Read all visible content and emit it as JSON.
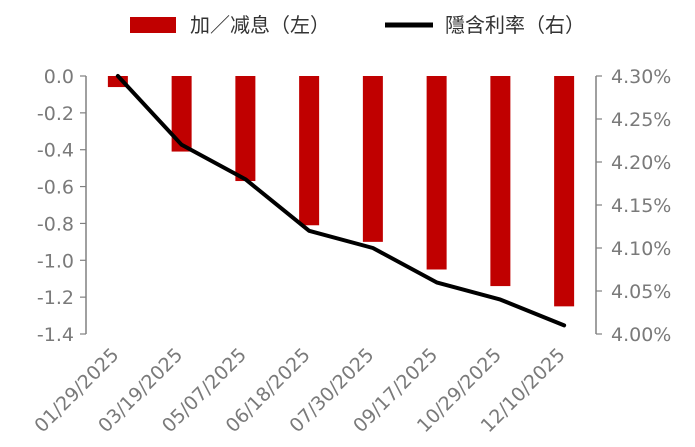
{
  "chart_data": {
    "type": "bar+line",
    "categories": [
      "01/29/2025",
      "03/19/2025",
      "05/07/2025",
      "06/18/2025",
      "07/30/2025",
      "09/17/2025",
      "10/29/2025",
      "12/10/2025"
    ],
    "series": [
      {
        "name": "加／减息（左）",
        "type": "bar",
        "axis": "left",
        "color": "#C00000",
        "values": [
          -0.06,
          -0.41,
          -0.57,
          -0.81,
          -0.9,
          -1.05,
          -1.14,
          -1.25
        ]
      },
      {
        "name": "隱含利率（右）",
        "type": "line",
        "axis": "right",
        "color": "#000000",
        "values": [
          4.3,
          4.22,
          4.18,
          4.12,
          4.1,
          4.06,
          4.04,
          4.01
        ]
      }
    ],
    "y_left": {
      "ylim": [
        -1.4,
        0.0
      ],
      "ticks": [
        "0.0",
        "-0.2",
        "-0.4",
        "-0.6",
        "-0.8",
        "-1.0",
        "-1.2",
        "-1.4"
      ]
    },
    "y_right": {
      "ylim": [
        4.0,
        4.3
      ],
      "ticks": [
        "4.30%",
        "4.25%",
        "4.20%",
        "4.15%",
        "4.10%",
        "4.05%",
        "4.00%"
      ]
    },
    "legend": "top",
    "grid": false
  }
}
